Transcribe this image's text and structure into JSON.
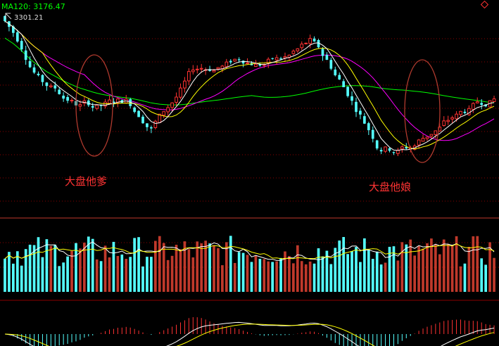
{
  "header": {
    "ma_label": "MA120: 3176.47",
    "high_marker": "3301.21",
    "corner_icon": "diamond-outline-icon"
  },
  "annotations": [
    {
      "text": "大盘他爹"
    },
    {
      "text": "大盘他娘"
    }
  ],
  "colors": {
    "background": "#000000",
    "up": "#ff3232",
    "down": "#54ffff",
    "volume_up": "#c0392b",
    "grid": "#8b0000",
    "ma5": "#ffffff",
    "ma10": "#ffff00",
    "ma20": "#ff00ff",
    "ma120": "#00ff00",
    "ma_label": "#00ff00",
    "annotation": "#ff3333",
    "ellipse": "#b03a2e"
  },
  "chart_data": {
    "type": "candlestick",
    "panels": [
      "price",
      "volume",
      "macd"
    ],
    "y_top_value": 3301.21,
    "ma120_last": 3176.47,
    "n_bars": 118,
    "pattern": [
      {
        "bars": 10,
        "trend": -0.9
      },
      {
        "bars": 8,
        "trend": -0.35
      },
      {
        "bars": 6,
        "trend": -0.1
      },
      {
        "bars": 6,
        "trend": 0.15
      },
      {
        "bars": 6,
        "trend": -0.5
      },
      {
        "bars": 10,
        "trend": 0.85
      },
      {
        "bars": 12,
        "trend": 0.2
      },
      {
        "bars": 10,
        "trend": 0.05
      },
      {
        "bars": 6,
        "trend": 0.25
      },
      {
        "bars": 16,
        "trend": -0.95
      },
      {
        "bars": 8,
        "trend": 0.1
      },
      {
        "bars": 6,
        "trend": 0.55
      },
      {
        "bars": 14,
        "trend": 0.35
      }
    ],
    "moving_averages": [
      "MA5",
      "MA10",
      "MA20",
      "MA120"
    ]
  }
}
